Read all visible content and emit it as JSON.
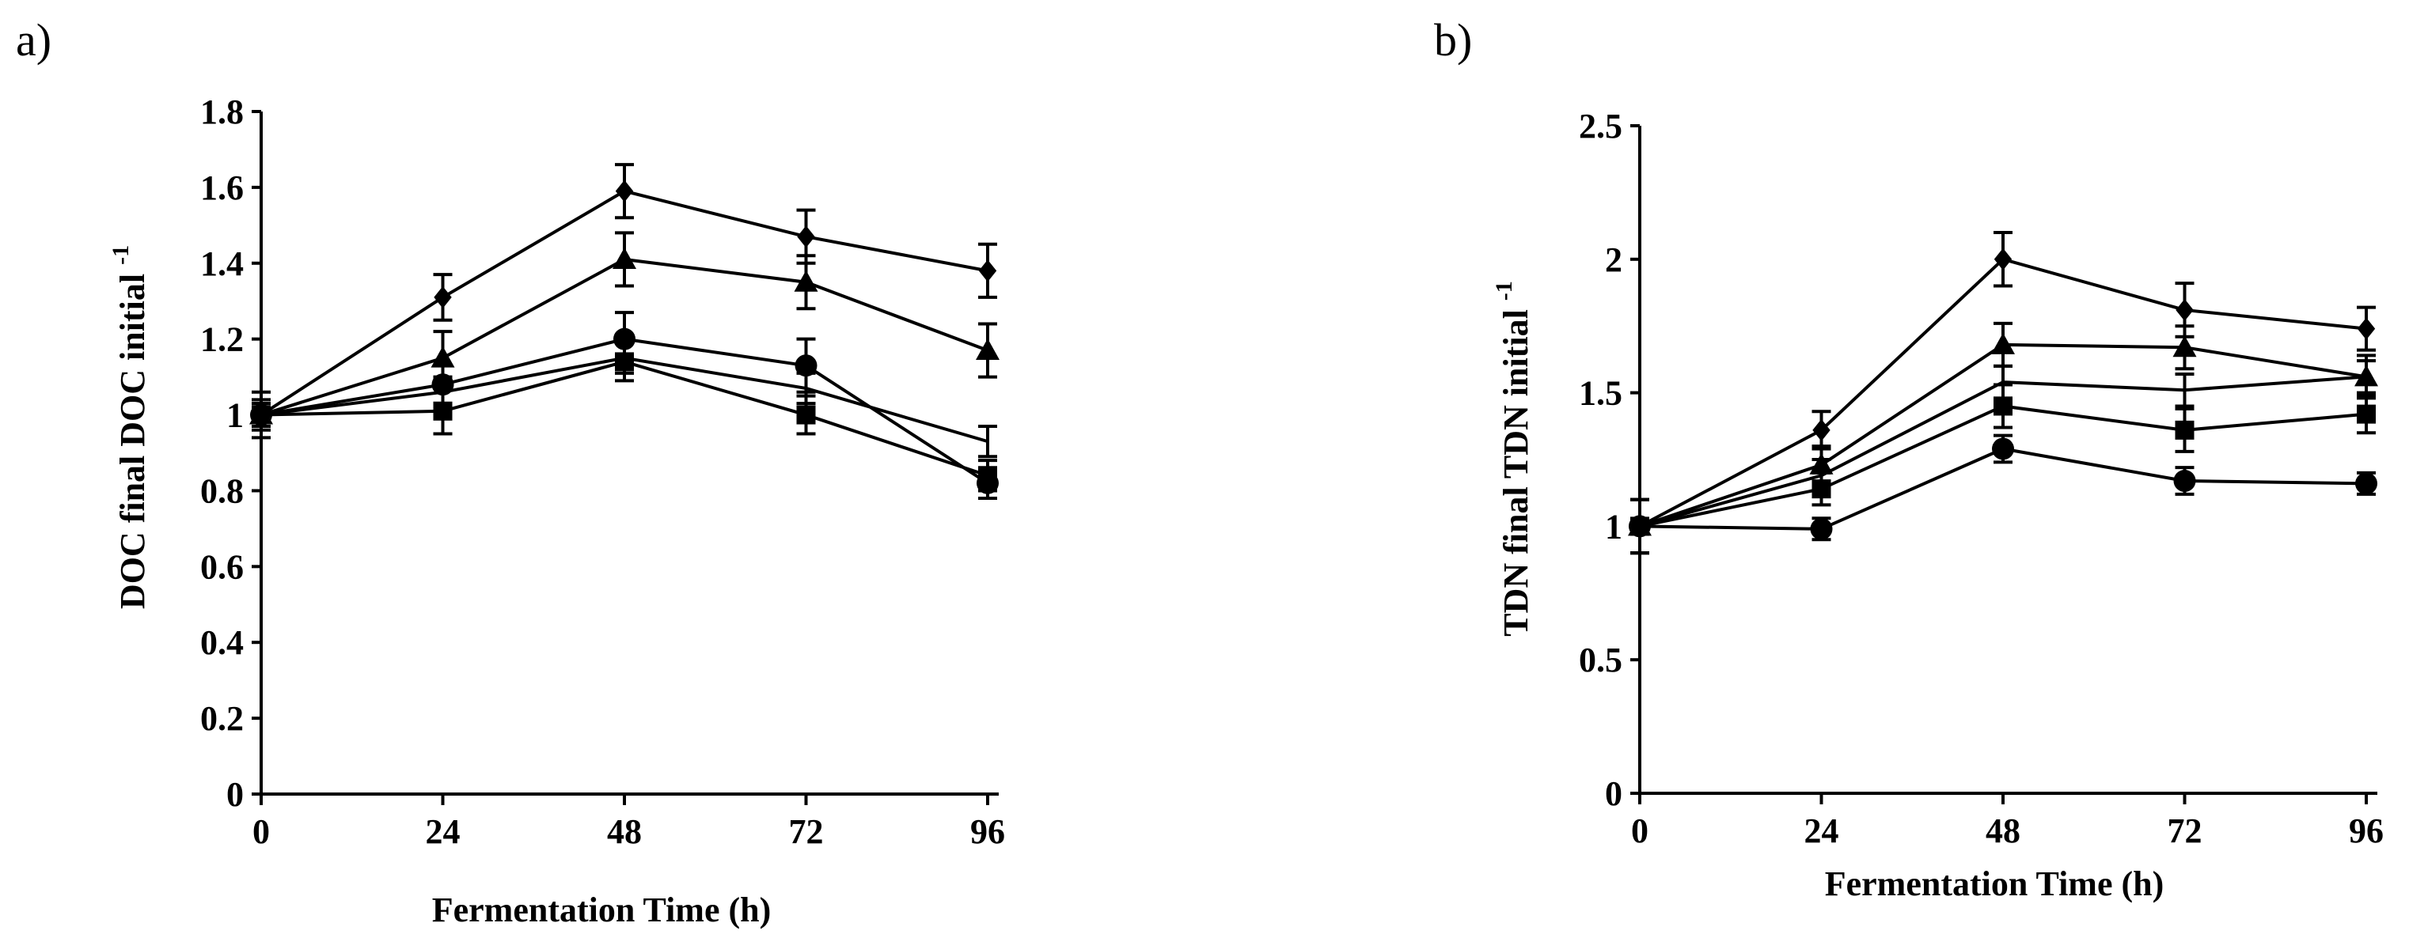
{
  "chart_data": [
    {
      "panel": "a)",
      "type": "line",
      "xlabel": "Fermentation Time (h)",
      "ylabel_main": "DOC final  DOC initial ",
      "ylabel_sup": "-1",
      "x": [
        0,
        24,
        48,
        72,
        96
      ],
      "xticks": [
        "0",
        "24",
        "48",
        "72",
        "96"
      ],
      "ylim": [
        0,
        1.8
      ],
      "yticks": [
        "0",
        "0.2",
        "0.4",
        "0.6",
        "0.8",
        "1",
        "1.2",
        "1.4",
        "1.6",
        "1.8"
      ],
      "ytick_values": [
        0,
        0.2,
        0.4,
        0.6,
        0.8,
        1.0,
        1.2,
        1.4,
        1.6,
        1.8
      ],
      "series": [
        {
          "name": "diamond",
          "marker": "diamond",
          "values": [
            1.0,
            1.31,
            1.59,
            1.47,
            1.38
          ],
          "errors": [
            0.03,
            0.06,
            0.07,
            0.07,
            0.07
          ]
        },
        {
          "name": "triangle",
          "marker": "triangle",
          "values": [
            1.0,
            1.15,
            1.41,
            1.35,
            1.17
          ],
          "errors": [
            0.03,
            0.07,
            0.07,
            0.07,
            0.07
          ]
        },
        {
          "name": "circle",
          "marker": "circle",
          "values": [
            1.0,
            1.08,
            1.2,
            1.13,
            0.82
          ],
          "errors": [
            0.04,
            0.05,
            0.07,
            0.07,
            0.04
          ]
        },
        {
          "name": "plain",
          "marker": "none",
          "values": [
            1.0,
            1.06,
            1.15,
            1.07,
            0.93
          ],
          "errors": [
            0.03,
            0.04,
            0.04,
            0.04,
            0.04
          ]
        },
        {
          "name": "square",
          "marker": "square",
          "values": [
            1.0,
            1.01,
            1.14,
            1.0,
            0.84
          ],
          "errors": [
            0.06,
            0.06,
            0.05,
            0.05,
            0.04
          ]
        }
      ]
    },
    {
      "panel": "b)",
      "type": "line",
      "xlabel": "Fermentation Time (h)",
      "ylabel_main": "TDN final TDN initial ",
      "ylabel_sup": "-1",
      "x": [
        0,
        24,
        48,
        72,
        96
      ],
      "xticks": [
        "0",
        "24",
        "48",
        "72",
        "96"
      ],
      "ylim": [
        0,
        2.5
      ],
      "yticks": [
        "0",
        "0.5",
        "1",
        "1.5",
        "2",
        "2.5"
      ],
      "ytick_values": [
        0,
        0.5,
        1.0,
        1.5,
        2.0,
        2.5
      ],
      "series": [
        {
          "name": "diamond",
          "marker": "diamond",
          "values": [
            1.0,
            1.36,
            2.0,
            1.81,
            1.74
          ],
          "errors": [
            0.1,
            0.07,
            0.1,
            0.1,
            0.08
          ]
        },
        {
          "name": "triangle",
          "marker": "triangle",
          "values": [
            1.0,
            1.23,
            1.68,
            1.67,
            1.56
          ],
          "errors": [
            0.1,
            0.07,
            0.08,
            0.08,
            0.08
          ]
        },
        {
          "name": "plain",
          "marker": "none",
          "values": [
            1.0,
            1.19,
            1.54,
            1.51,
            1.56
          ],
          "errors": [
            0.1,
            0.06,
            0.06,
            0.06,
            0.06
          ]
        },
        {
          "name": "square",
          "marker": "square",
          "values": [
            1.0,
            1.14,
            1.45,
            1.36,
            1.42
          ],
          "errors": [
            0.1,
            0.06,
            0.08,
            0.08,
            0.07
          ]
        },
        {
          "name": "circle",
          "marker": "circle",
          "values": [
            1.0,
            0.99,
            1.29,
            1.17,
            1.16
          ],
          "errors": [
            0.1,
            0.04,
            0.05,
            0.05,
            0.04
          ]
        }
      ]
    }
  ]
}
